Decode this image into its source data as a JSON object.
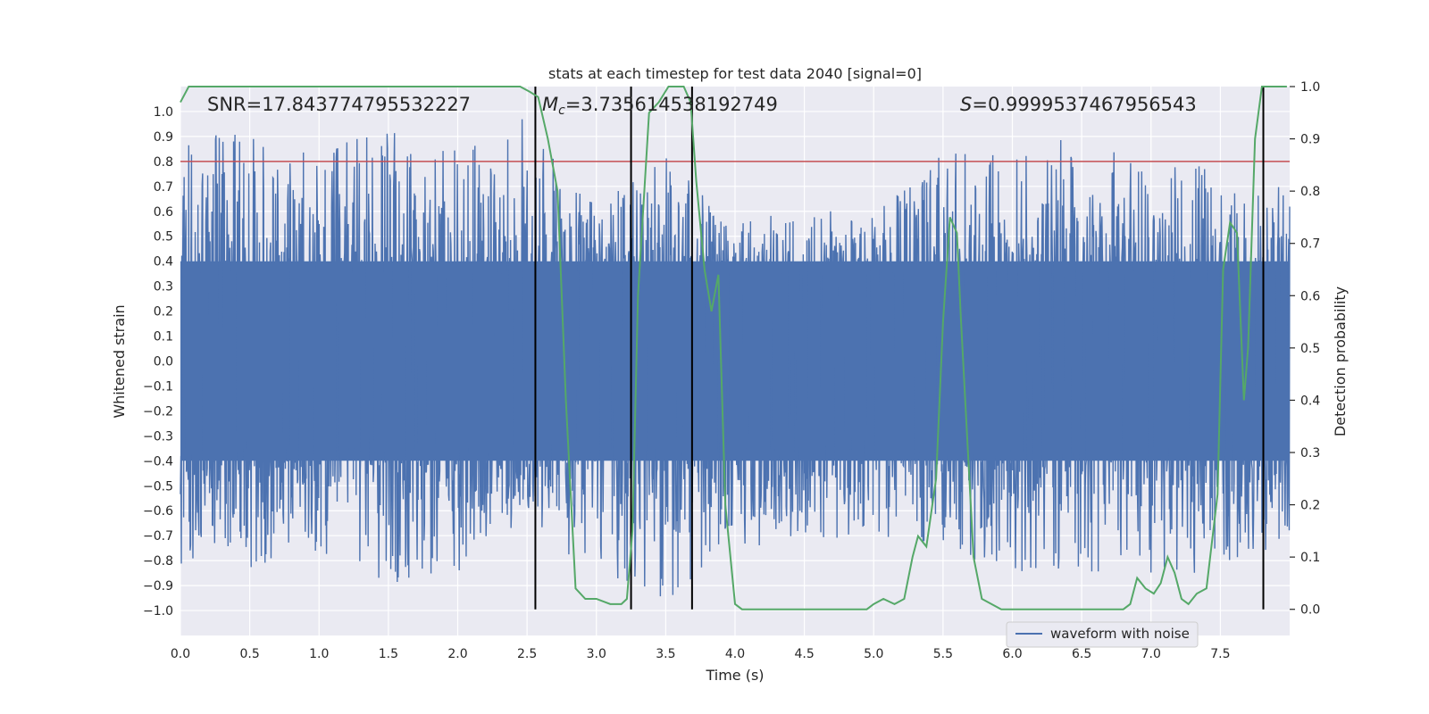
{
  "chart_data": {
    "type": "line",
    "title": "stats at each timestep for test data 2040 [signal=0]",
    "xlabel": "Time (s)",
    "ylabel": "Whitened strain",
    "y2label": "Detection probability",
    "xlim": [
      0.0,
      8.0
    ],
    "ylim": [
      -1.1,
      1.1
    ],
    "y2lim": [
      -0.05,
      1.0
    ],
    "x_ticks": [
      "0.0",
      "0.5",
      "1.0",
      "1.5",
      "2.0",
      "2.5",
      "3.0",
      "3.5",
      "4.0",
      "4.5",
      "5.0",
      "5.5",
      "6.0",
      "6.5",
      "7.0",
      "7.5"
    ],
    "y_ticks": [
      "1.0",
      "0.9",
      "0.8",
      "0.7",
      "0.6",
      "0.5",
      "0.4",
      "0.3",
      "0.2",
      "0.1",
      "0.0",
      "−0.1",
      "−0.2",
      "−0.3",
      "−0.4",
      "−0.5",
      "−0.6",
      "−0.7",
      "−0.8",
      "−0.9",
      "−1.0"
    ],
    "y2_ticks": [
      "1.0",
      "0.9",
      "0.8",
      "0.7",
      "0.6",
      "0.5",
      "0.4",
      "0.3",
      "0.2",
      "0.1",
      "0.0"
    ],
    "grid": true,
    "legend": {
      "position": "bottom-center",
      "entries": [
        "waveform with noise"
      ]
    },
    "annotations": {
      "snr_text": "SNR=17.843774795532227",
      "mc_symbol": "M",
      "mc_sub": "c",
      "mc_value": "=3.735614538192749",
      "s_symbol": "S",
      "s_value": "=0.9999537467956543"
    },
    "threshold": {
      "value": 0.8,
      "color": "#c44e52"
    },
    "vertical_lines": [
      2.56,
      3.25,
      3.69,
      7.81
    ],
    "series": [
      {
        "name": "waveform with noise",
        "color": "#4c72b0",
        "axis": "left",
        "envelope": {
          "x": [
            0.0,
            0.5,
            1.0,
            1.5,
            2.0,
            2.5,
            3.0,
            3.5,
            4.0,
            4.5,
            5.0,
            5.5,
            6.0,
            6.5,
            7.0,
            7.5,
            8.0
          ],
          "pos_max": [
            0.98,
            0.93,
            0.85,
            0.95,
            0.85,
            0.98,
            0.62,
            0.82,
            0.55,
            0.62,
            0.58,
            0.9,
            0.92,
            0.88,
            0.8,
            0.78,
            0.7
          ],
          "neg_min": [
            -0.82,
            -0.83,
            -0.8,
            -0.91,
            -0.85,
            -0.62,
            -0.91,
            -0.99,
            -0.76,
            -0.72,
            -0.7,
            -0.75,
            -0.88,
            -0.85,
            -0.88,
            -0.85,
            -0.72
          ]
        }
      },
      {
        "name": "detection probability",
        "color": "#55a868",
        "axis": "right",
        "x": [
          0.0,
          0.06,
          0.12,
          0.5,
          1.0,
          1.5,
          2.0,
          2.3,
          2.45,
          2.52,
          2.58,
          2.65,
          2.72,
          2.78,
          2.85,
          2.92,
          3.0,
          3.1,
          3.18,
          3.22,
          3.26,
          3.3,
          3.38,
          3.45,
          3.52,
          3.58,
          3.63,
          3.68,
          3.72,
          3.78,
          3.83,
          3.88,
          3.93,
          4.0,
          4.05,
          4.2,
          4.5,
          4.7,
          4.8,
          4.85,
          4.95,
          5.0,
          5.07,
          5.15,
          5.22,
          5.28,
          5.32,
          5.38,
          5.45,
          5.5,
          5.55,
          5.6,
          5.63,
          5.67,
          5.72,
          5.78,
          5.85,
          5.92,
          6.0,
          6.1,
          6.5,
          6.8,
          6.85,
          6.9,
          6.96,
          7.02,
          7.07,
          7.12,
          7.17,
          7.22,
          7.27,
          7.33,
          7.4,
          7.48,
          7.52,
          7.57,
          7.62,
          7.67,
          7.7,
          7.75,
          7.8,
          7.85,
          7.88,
          7.92,
          7.98
        ],
        "y": [
          0.97,
          1.0,
          1.0,
          1.0,
          1.0,
          1.0,
          1.0,
          1.0,
          1.0,
          0.99,
          0.98,
          0.9,
          0.8,
          0.4,
          0.04,
          0.02,
          0.02,
          0.01,
          0.01,
          0.02,
          0.15,
          0.6,
          0.95,
          0.97,
          1.0,
          1.0,
          1.0,
          0.97,
          0.82,
          0.65,
          0.57,
          0.64,
          0.2,
          0.01,
          0.0,
          0.0,
          0.0,
          0.0,
          0.0,
          0.0,
          0.0,
          0.01,
          0.02,
          0.01,
          0.02,
          0.1,
          0.14,
          0.12,
          0.25,
          0.55,
          0.75,
          0.72,
          0.55,
          0.35,
          0.1,
          0.02,
          0.01,
          0.0,
          0.0,
          0.0,
          0.0,
          0.0,
          0.01,
          0.06,
          0.04,
          0.03,
          0.05,
          0.1,
          0.07,
          0.02,
          0.01,
          0.03,
          0.04,
          0.22,
          0.65,
          0.74,
          0.72,
          0.4,
          0.5,
          0.9,
          1.0,
          1.0,
          1.0,
          1.0,
          1.0
        ]
      }
    ]
  }
}
